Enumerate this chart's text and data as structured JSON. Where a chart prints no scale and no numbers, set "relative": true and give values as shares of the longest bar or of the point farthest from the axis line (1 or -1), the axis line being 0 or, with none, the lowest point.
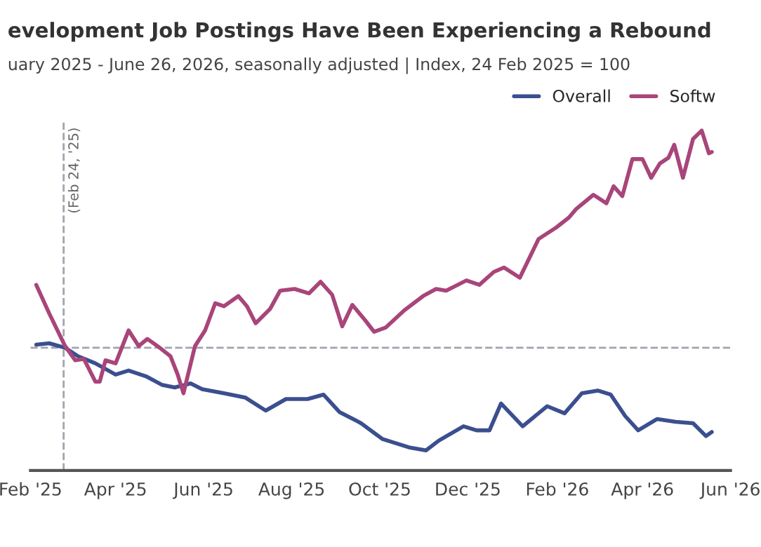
{
  "chart_data": {
    "type": "line",
    "title": "evelopment Job Postings Have Been Experiencing a Rebound",
    "subtitle": "uary 2025 - June 26, 2026, seasonally adjusted | Index, 24 Feb 2025 = 100",
    "relative": true,
    "legend": "top right",
    "grid": false,
    "line_style": "solid",
    "marker": "none",
    "xlim": [
      "2025-02-01",
      "2026-06-01"
    ],
    "xticks": [
      {
        "value": "2025-02-01",
        "label": "Feb '25"
      },
      {
        "value": "2025-04-01",
        "label": "Apr '25"
      },
      {
        "value": "2025-06-01",
        "label": "Jun '25"
      },
      {
        "value": "2025-08-01",
        "label": "Aug '25"
      },
      {
        "value": "2025-10-01",
        "label": "Oct '25"
      },
      {
        "value": "2025-12-01",
        "label": "Dec '25"
      },
      {
        "value": "2026-02-01",
        "label": "Feb '26"
      },
      {
        "value": "2026-04-01",
        "label": "Apr '26"
      },
      {
        "value": "2026-06-01",
        "label": "Jun '26"
      }
    ],
    "ref_lines": [
      {
        "axis": "y",
        "value": 0.361,
        "color": "#a0a4ae",
        "line_style": "dashed"
      },
      {
        "axis": "x",
        "value": "2025-02-24",
        "label": "(Feb 24, '25)",
        "color": "#a0a4ae",
        "line_style": "dashed"
      }
    ],
    "series": [
      {
        "name": "Overall",
        "color": "#3b4f8f",
        "x": [
          "2025-02-05",
          "2025-02-14",
          "2025-02-25",
          "2025-03-06",
          "2025-03-18",
          "2025-04-01",
          "2025-04-10",
          "2025-04-22",
          "2025-05-03",
          "2025-05-12",
          "2025-05-23",
          "2025-05-31",
          "2025-06-15",
          "2025-06-30",
          "2025-07-14",
          "2025-07-28",
          "2025-08-12",
          "2025-08-23",
          "2025-09-03",
          "2025-09-18",
          "2025-10-03",
          "2025-10-22",
          "2025-11-02",
          "2025-11-11",
          "2025-11-28",
          "2025-12-07",
          "2025-12-16",
          "2025-12-24",
          "2026-01-08",
          "2026-01-25",
          "2026-02-06",
          "2026-02-18",
          "2026-03-01",
          "2026-03-10",
          "2026-03-20",
          "2026-03-29",
          "2026-04-11",
          "2026-04-24",
          "2026-05-06",
          "2026-05-15",
          "2026-05-19"
        ],
        "values": [
          0.37,
          0.374,
          0.361,
          0.336,
          0.315,
          0.282,
          0.294,
          0.277,
          0.252,
          0.244,
          0.256,
          0.239,
          0.227,
          0.214,
          0.176,
          0.21,
          0.21,
          0.223,
          0.172,
          0.139,
          0.092,
          0.067,
          0.059,
          0.088,
          0.13,
          0.118,
          0.118,
          0.197,
          0.13,
          0.189,
          0.168,
          0.227,
          0.235,
          0.223,
          0.16,
          0.118,
          0.151,
          0.143,
          0.139,
          0.101,
          0.113
        ]
      },
      {
        "name": "Softw",
        "color": "#a8457a",
        "x": [
          "2025-02-05",
          "2025-02-14",
          "2025-02-25",
          "2025-03-04",
          "2025-03-10",
          "2025-03-18",
          "2025-03-21",
          "2025-03-25",
          "2025-04-01",
          "2025-04-10",
          "2025-04-17",
          "2025-04-23",
          "2025-04-30",
          "2025-05-09",
          "2025-05-14",
          "2025-05-18",
          "2025-05-26",
          "2025-06-02",
          "2025-06-09",
          "2025-06-15",
          "2025-06-25",
          "2025-07-01",
          "2025-07-07",
          "2025-07-17",
          "2025-07-24",
          "2025-08-03",
          "2025-08-13",
          "2025-08-21",
          "2025-08-29",
          "2025-09-05",
          "2025-09-12",
          "2025-09-21",
          "2025-09-27",
          "2025-10-05",
          "2025-10-18",
          "2025-10-31",
          "2025-11-09",
          "2025-11-16",
          "2025-11-30",
          "2025-12-09",
          "2025-12-19",
          "2025-12-26",
          "2026-01-06",
          "2026-01-19",
          "2026-01-31",
          "2026-02-09",
          "2026-02-14",
          "2026-02-26",
          "2026-03-07",
          "2026-03-12",
          "2026-03-18",
          "2026-03-25",
          "2026-04-01",
          "2026-04-07",
          "2026-04-13",
          "2026-04-19",
          "2026-04-23",
          "2026-04-29",
          "2026-05-06",
          "2026-05-12",
          "2026-05-17",
          "2026-05-19"
        ],
        "values": [
          0.546,
          0.462,
          0.366,
          0.324,
          0.328,
          0.261,
          0.261,
          0.324,
          0.315,
          0.412,
          0.366,
          0.387,
          0.366,
          0.336,
          0.282,
          0.227,
          0.366,
          0.412,
          0.492,
          0.483,
          0.513,
          0.483,
          0.433,
          0.475,
          0.529,
          0.534,
          0.521,
          0.555,
          0.517,
          0.424,
          0.487,
          0.441,
          0.408,
          0.42,
          0.471,
          0.513,
          0.534,
          0.529,
          0.559,
          0.546,
          0.584,
          0.597,
          0.567,
          0.681,
          0.714,
          0.744,
          0.769,
          0.811,
          0.786,
          0.836,
          0.807,
          0.916,
          0.916,
          0.861,
          0.903,
          0.92,
          0.958,
          0.861,
          0.975,
          1,
          0.933,
          0.937
        ]
      }
    ]
  }
}
